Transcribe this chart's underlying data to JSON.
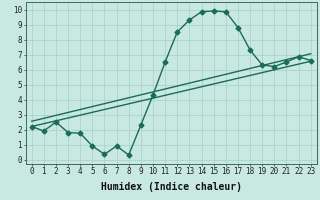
{
  "xlabel": "Humidex (Indice chaleur)",
  "ylabel": "",
  "xlim": [
    -0.5,
    23.5
  ],
  "ylim": [
    -0.3,
    10.5
  ],
  "xticks": [
    0,
    1,
    2,
    3,
    4,
    5,
    6,
    7,
    8,
    9,
    10,
    11,
    12,
    13,
    14,
    15,
    16,
    17,
    18,
    19,
    20,
    21,
    22,
    23
  ],
  "yticks": [
    0,
    1,
    2,
    3,
    4,
    5,
    6,
    7,
    8,
    9,
    10
  ],
  "bg_color": "#c8e8e2",
  "line_color": "#1a6b5a",
  "grid_color": "#a8cfc8",
  "main_x": [
    0,
    1,
    2,
    3,
    4,
    5,
    6,
    7,
    8,
    9,
    10,
    11,
    12,
    13,
    14,
    15,
    16,
    17,
    18,
    19,
    20,
    21,
    22,
    23
  ],
  "main_y": [
    2.2,
    1.9,
    2.5,
    1.8,
    1.75,
    0.9,
    0.35,
    0.9,
    0.3,
    2.3,
    4.3,
    6.5,
    8.5,
    9.3,
    9.85,
    9.9,
    9.85,
    8.8,
    7.3,
    6.3,
    6.2,
    6.5,
    6.85,
    6.6
  ],
  "ref_line1_x": [
    0,
    23
  ],
  "ref_line1_y": [
    2.2,
    6.55
  ],
  "ref_line2_x": [
    0,
    23
  ],
  "ref_line2_y": [
    2.55,
    7.05
  ],
  "marker_size": 2.5,
  "line_width": 1.0,
  "font_size_label": 7,
  "font_size_tick": 5.5
}
